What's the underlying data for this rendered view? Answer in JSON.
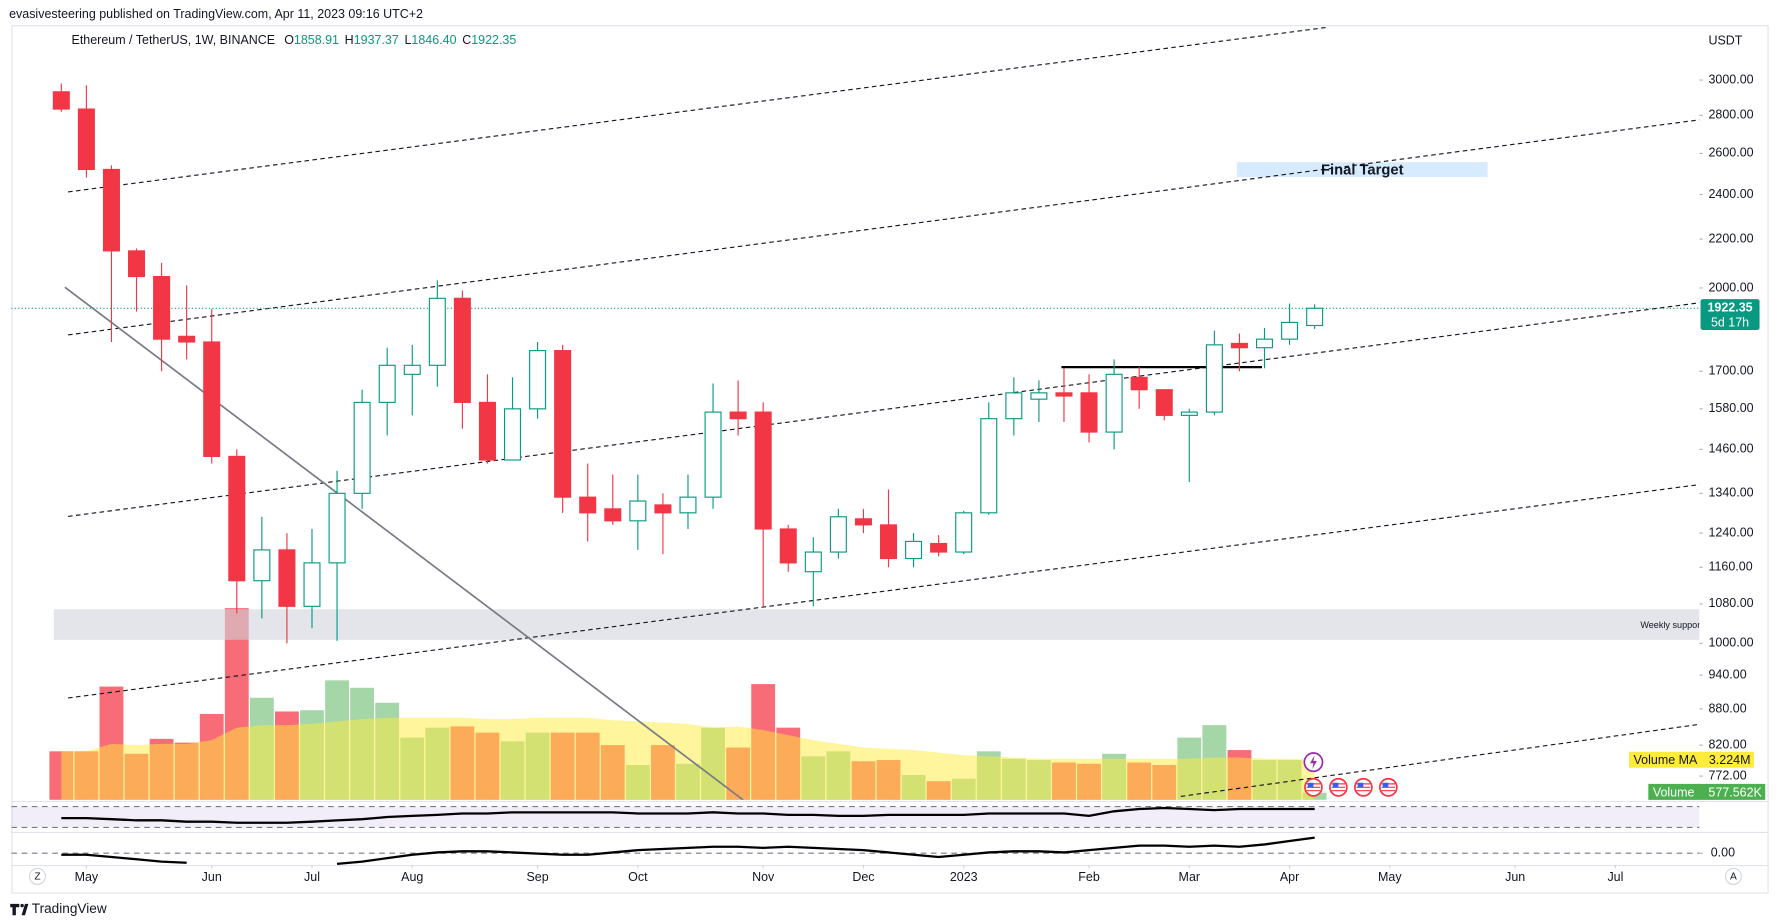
{
  "header": {
    "author_line": "evasivesteering published on TradingView.com, Apr 11, 2023 09:16 UTC+2",
    "logo": "TradingView"
  },
  "ui": {
    "left_button": "Z",
    "right_button": "A"
  },
  "chart_data": {
    "type": "candlestick",
    "title": "Ethereum / TetherUS, 1W, BINANCE",
    "currency": "USDT",
    "ohlc_labels": [
      "O",
      "H",
      "L",
      "C"
    ],
    "last_bar_labels": {
      "open": "1858.91",
      "high": "1937.37",
      "low": "1846.40",
      "close": "1922.35"
    },
    "countdown": "5d 17h",
    "open": [
      2932,
      2835,
      2520,
      2150,
      2045,
      1820,
      1800,
      1440,
      1130,
      1200,
      1075,
      1170,
      1340,
      1600,
      1690,
      1720,
      1960,
      1600,
      1430,
      1580,
      1770,
      1330,
      1300,
      1270,
      1310,
      1290,
      1330,
      1570,
      1570,
      1250,
      1150,
      1195,
      1275,
      1260,
      1180,
      1215,
      1195,
      1290,
      1550,
      1610,
      1630,
      1630,
      1510,
      1680,
      1640,
      1560,
      1570,
      1795,
      1780,
      1810,
      1858.91
    ],
    "high": [
      2980,
      2970,
      2540,
      2160,
      2100,
      2010,
      1920,
      1460,
      1280,
      1240,
      1250,
      1400,
      1640,
      1780,
      1790,
      2030,
      1990,
      1690,
      1680,
      1800,
      1790,
      1420,
      1390,
      1390,
      1340,
      1390,
      1660,
      1670,
      1600,
      1260,
      1230,
      1300,
      1300,
      1350,
      1240,
      1235,
      1295,
      1600,
      1680,
      1670,
      1710,
      1690,
      1740,
      1715,
      1640,
      1580,
      1840,
      1830,
      1850,
      1940,
      1937.37
    ],
    "low": [
      2820,
      2480,
      1800,
      1910,
      1700,
      1740,
      1420,
      1060,
      1050,
      1000,
      1030,
      1005,
      1300,
      1500,
      1560,
      1650,
      1520,
      1420,
      1430,
      1550,
      1290,
      1220,
      1260,
      1200,
      1190,
      1250,
      1300,
      1500,
      1075,
      1150,
      1075,
      1180,
      1240,
      1160,
      1160,
      1185,
      1190,
      1285,
      1500,
      1540,
      1540,
      1480,
      1460,
      1580,
      1545,
      1370,
      1560,
      1700,
      1710,
      1790,
      1846.4
    ],
    "close": [
      2835,
      2520,
      2150,
      2045,
      1810,
      1800,
      1440,
      1130,
      1200,
      1075,
      1170,
      1340,
      1600,
      1720,
      1720,
      1960,
      1600,
      1430,
      1580,
      1770,
      1330,
      1290,
      1270,
      1320,
      1290,
      1330,
      1570,
      1550,
      1250,
      1170,
      1195,
      1280,
      1260,
      1180,
      1220,
      1195,
      1290,
      1550,
      1630,
      1630,
      1620,
      1510,
      1690,
      1640,
      1560,
      1570,
      1790,
      1780,
      1810,
      1870,
      1922.35
    ],
    "up_color": "#089981",
    "down_color": "#f23645",
    "log_scale": true,
    "grid": false,
    "xlim": [
      -0.3,
      65.35
    ],
    "xticks": [
      {
        "value": 1,
        "label": "May"
      },
      {
        "value": 6,
        "label": "Jun"
      },
      {
        "value": 10,
        "label": "Jul"
      },
      {
        "value": 14,
        "label": "Aug"
      },
      {
        "value": 19,
        "label": "Sep"
      },
      {
        "value": 23,
        "label": "Oct"
      },
      {
        "value": 28,
        "label": "Nov"
      },
      {
        "value": 32,
        "label": "Dec"
      },
      {
        "value": 36,
        "label": "2023"
      },
      {
        "value": 41,
        "label": "Feb"
      },
      {
        "value": 45,
        "label": "Mar"
      },
      {
        "value": 49,
        "label": "Apr"
      },
      {
        "value": 53,
        "label": "May"
      },
      {
        "value": 58,
        "label": "Jun"
      },
      {
        "value": 62,
        "label": "Jul"
      }
    ],
    "ylim": [
      737,
      3354
    ],
    "yticks": [
      {
        "value": 772,
        "label": "772.00"
      },
      {
        "value": 820,
        "label": "820.00"
      },
      {
        "value": 880,
        "label": "880.00"
      },
      {
        "value": 940,
        "label": "940.00"
      },
      {
        "value": 1000,
        "label": "1000.00"
      },
      {
        "value": 1080,
        "label": "1080.00"
      },
      {
        "value": 1160,
        "label": "1160.00"
      },
      {
        "value": 1240,
        "label": "1240.00"
      },
      {
        "value": 1340,
        "label": "1340.00"
      },
      {
        "value": 1460,
        "label": "1460.00"
      },
      {
        "value": 1580,
        "label": "1580.00"
      },
      {
        "value": 1700,
        "label": "1700.00"
      },
      {
        "value": 2000,
        "label": "2000.00"
      },
      {
        "value": 2200,
        "label": "2200.00"
      },
      {
        "value": 2400,
        "label": "2400.00"
      },
      {
        "value": 2600,
        "label": "2600.00"
      },
      {
        "value": 2800,
        "label": "2800.00"
      },
      {
        "value": 3000,
        "label": "3000.00"
      }
    ],
    "volume": {
      "name": "Volume",
      "up_color": "#a5d6a7",
      "down_color": "#f7525f",
      "legend_color": "#4caf50",
      "ylim": [
        0,
        62.4
      ],
      "values": [
        3.9,
        3.9,
        9.1,
        3.7,
        4.9,
        4.6,
        6.9,
        15.4,
        8.2,
        7.1,
        7.2,
        9.6,
        9.0,
        7.8,
        5.0,
        5.8,
        5.9,
        5.4,
        4.7,
        5.4,
        5.4,
        5.4,
        4.4,
        2.8,
        4.4,
        2.9,
        5.8,
        4.2,
        9.3,
        5.8,
        3.5,
        3.9,
        3.1,
        3.2,
        2.0,
        1.5,
        1.7,
        3.9,
        3.3,
        3.2,
        3.0,
        2.9,
        3.7,
        3.0,
        2.8,
        5.0,
        6.0,
        4.0,
        3.2,
        3.2,
        0.577562
      ],
      "value_labels": [
        null,
        null,
        null,
        null,
        null,
        null,
        null,
        null,
        null,
        null,
        null,
        null,
        null,
        null,
        null,
        null,
        null,
        null,
        null,
        null,
        null,
        null,
        null,
        null,
        null,
        null,
        null,
        null,
        null,
        null,
        null,
        null,
        null,
        null,
        null,
        null,
        null,
        null,
        null,
        null,
        null,
        null,
        null,
        null,
        null,
        null,
        null,
        null,
        null,
        null,
        "577.562K"
      ]
    },
    "volume_ma": {
      "name": "Volume MA",
      "color": "#ffeb3b",
      "values": [
        3.9,
        3.9,
        4.5,
        4.4,
        4.5,
        4.5,
        4.8,
        5.8,
        6.0,
        6.0,
        6.1,
        6.3,
        6.5,
        6.6,
        6.6,
        6.6,
        6.6,
        6.5,
        6.5,
        6.6,
        6.6,
        6.6,
        6.4,
        6.3,
        6.2,
        6.1,
        5.8,
        5.9,
        5.6,
        5.2,
        4.8,
        4.5,
        4.2,
        4.1,
        4.0,
        3.8,
        3.6,
        3.5,
        3.4,
        3.3,
        3.3,
        3.3,
        3.3,
        3.3,
        3.3,
        3.3,
        3.4,
        3.4,
        3.3,
        3.3,
        3.224
      ],
      "value_labels": [
        null,
        null,
        null,
        null,
        null,
        null,
        null,
        null,
        null,
        null,
        null,
        null,
        null,
        null,
        null,
        null,
        null,
        null,
        null,
        null,
        null,
        null,
        null,
        null,
        null,
        null,
        null,
        null,
        null,
        null,
        null,
        null,
        null,
        null,
        null,
        null,
        null,
        null,
        null,
        null,
        null,
        null,
        null,
        null,
        null,
        null,
        null,
        null,
        null,
        null,
        "3.224M"
      ]
    },
    "zones": [
      {
        "label": "Final Target",
        "xlim": [
          46.9,
          56.9
        ],
        "ylim": [
          2483,
          2556
        ],
        "color": "#bbdefb",
        "label_position": "center"
      },
      {
        "label": "Weekly support",
        "xlim": [
          -0.3,
          65.35
        ],
        "ylim": [
          1007,
          1069
        ],
        "color": "#d1d4dc",
        "label_position": "right"
      }
    ],
    "lines": [
      {
        "x": [
          0.27,
          50.5
        ],
        "y": [
          2412,
          3325
        ],
        "style": "dashed",
        "color": "#131722"
      },
      {
        "x": [
          0.27,
          65.35
        ],
        "y": [
          1825,
          2776
        ],
        "style": "dashed",
        "color": "#131722"
      },
      {
        "x": [
          0.27,
          65.35
        ],
        "y": [
          1281,
          1943
        ],
        "style": "dashed",
        "color": "#131722"
      },
      {
        "x": [
          0.27,
          65.35
        ],
        "y": [
          899,
          1363
        ],
        "style": "dashed",
        "color": "#131722"
      },
      {
        "x": [
          44.66,
          65.35
        ],
        "y": [
          742,
          854
        ],
        "style": "dashed",
        "color": "#131722"
      },
      {
        "x": [
          0.14,
          27.2
        ],
        "y": [
          2003,
          737
        ],
        "style": "solid",
        "color": "#787b86"
      },
      {
        "x": [
          39.9,
          47.9
        ],
        "y": [
          1714,
          1714
        ],
        "style": "solid",
        "color": "#000000"
      }
    ],
    "indicators": [
      {
        "ylim": [
          0,
          100
        ],
        "levels": [
          88,
          12
        ],
        "band_color": "#7e57c2",
        "values": [
          46,
          46,
          42,
          38,
          38,
          33,
          33,
          29,
          29,
          29,
          33,
          38,
          42,
          50,
          54,
          58,
          63,
          63,
          67,
          67,
          67,
          67,
          67,
          63,
          63,
          63,
          67,
          63,
          63,
          58,
          58,
          54,
          54,
          58,
          58,
          58,
          58,
          63,
          63,
          63,
          63,
          54,
          71,
          79,
          83,
          79,
          75,
          79,
          79,
          79,
          79
        ]
      },
      {
        "ylim": [
          -2,
          1
        ],
        "levels": [
          0
        ],
        "yticks": [
          {
            "value": 0,
            "label": "0.00"
          }
        ],
        "values": [
          -0.08,
          -0.08,
          -0.2,
          -0.32,
          -0.44,
          -0.5,
          null,
          null,
          null,
          null,
          null,
          -0.56,
          -0.44,
          -0.26,
          -0.08,
          0.04,
          0.1,
          0.1,
          0.04,
          -0.02,
          -0.08,
          -0.08,
          0.04,
          0.16,
          0.22,
          0.28,
          0.34,
          0.34,
          0.28,
          0.34,
          0.28,
          0.22,
          0.16,
          0.04,
          -0.08,
          -0.2,
          -0.08,
          0.04,
          0.1,
          0.1,
          0.04,
          0.16,
          0.28,
          0.4,
          0.4,
          0.34,
          0.4,
          0.34,
          0.46,
          0.64,
          0.82
        ]
      }
    ]
  }
}
